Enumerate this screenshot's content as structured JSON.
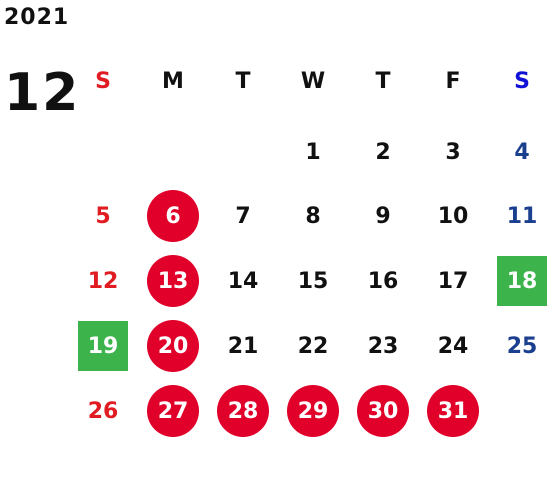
{
  "calendar": {
    "year": "2021",
    "month": "12",
    "weekdays": [
      "S",
      "M",
      "T",
      "W",
      "T",
      "F",
      "S"
    ],
    "colors": {
      "sunday": "#e01b22",
      "saturday": "#1b3f8f",
      "holiday_circle": "#e0002a",
      "special_square": "#3cb44b"
    },
    "weeks": [
      [
        "",
        "",
        "",
        "1",
        "2",
        "3",
        "4"
      ],
      [
        "5",
        "6",
        "7",
        "8",
        "9",
        "10",
        "11"
      ],
      [
        "12",
        "13",
        "14",
        "15",
        "16",
        "17",
        "18"
      ],
      [
        "19",
        "20",
        "21",
        "22",
        "23",
        "24",
        "25"
      ],
      [
        "26",
        "27",
        "28",
        "29",
        "30",
        "31",
        ""
      ]
    ],
    "circled_days": [
      "6",
      "13",
      "20",
      "27",
      "28",
      "29",
      "30",
      "31"
    ],
    "green_days": [
      "18",
      "19"
    ]
  }
}
